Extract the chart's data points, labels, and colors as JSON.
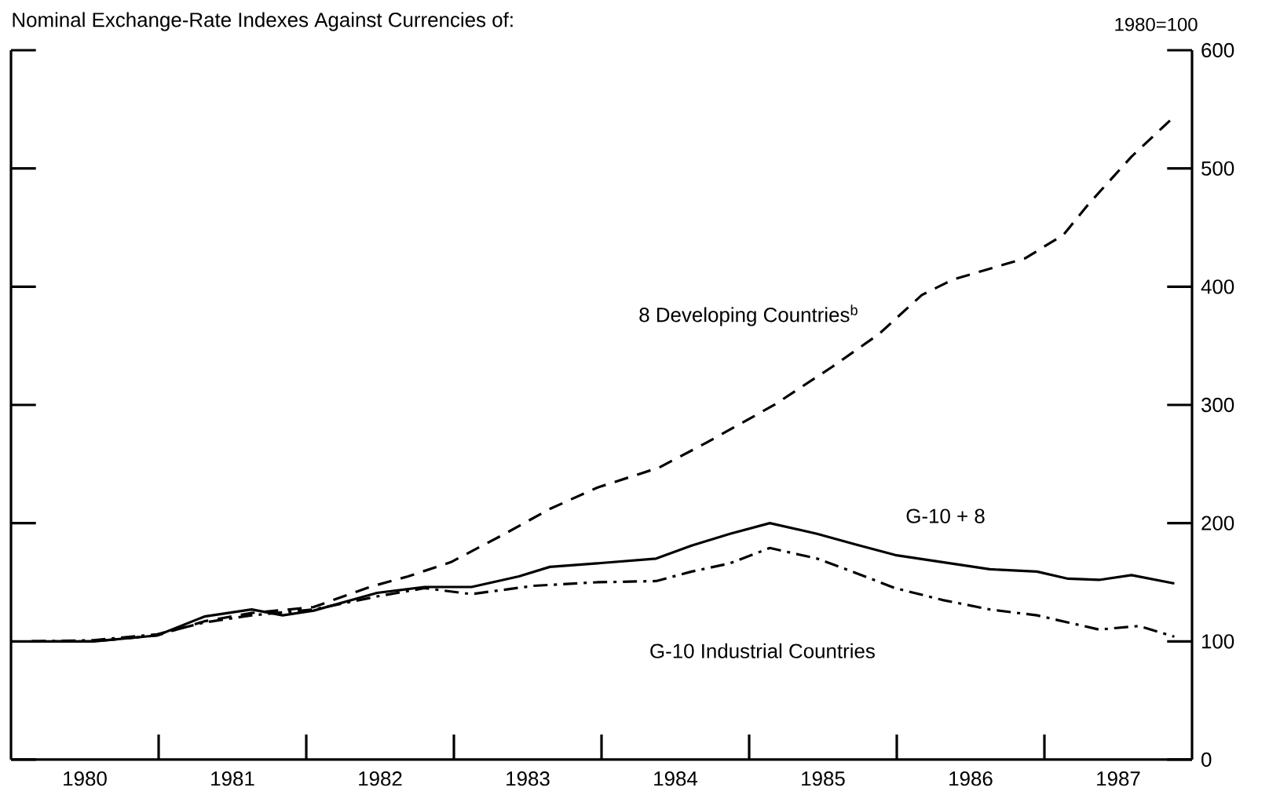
{
  "chart_data": {
    "type": "line",
    "title": "Nominal Exchange-Rate Indexes Against Currencies of:",
    "ylabel": "1980=100",
    "xlim": [
      1980,
      1988
    ],
    "ylim": [
      0,
      600
    ],
    "yticks": [
      0,
      100,
      200,
      300,
      400,
      500,
      600
    ],
    "xticks": [
      {
        "value": 1980.5,
        "label": "1980"
      },
      {
        "value": 1981,
        "label": null
      },
      {
        "value": 1981.5,
        "label": "1981"
      },
      {
        "value": 1982,
        "label": null
      },
      {
        "value": 1982.5,
        "label": "1982"
      },
      {
        "value": 1983,
        "label": null
      },
      {
        "value": 1983.5,
        "label": "1983"
      },
      {
        "value": 1984,
        "label": null
      },
      {
        "value": 1984.5,
        "label": "1984"
      },
      {
        "value": 1985,
        "label": null
      },
      {
        "value": 1985.5,
        "label": "1985"
      },
      {
        "value": 1986,
        "label": null
      },
      {
        "value": 1986.5,
        "label": "1986"
      },
      {
        "value": 1987,
        "label": null
      },
      {
        "value": 1987.5,
        "label": "1987"
      }
    ],
    "grid": false,
    "legend": false,
    "marker": "none",
    "series": [
      {
        "name": "8 Developing Countries$^{b}$",
        "color": "#000000",
        "line_style": "dashed",
        "x": [
          1980.14,
          1980.56,
          1980.99,
          1981.31,
          1981.63,
          1982.05,
          1982.43,
          1982.69,
          1982.98,
          1983.33,
          1983.65,
          1983.97,
          1984.39,
          1984.71,
          1985.17,
          1985.56,
          1985.88,
          1986.17,
          1986.38,
          1986.87,
          1987.13,
          1987.3,
          1987.59,
          1987.88
        ],
        "values": [
          100,
          100,
          105,
          117,
          124,
          129,
          146,
          155,
          167,
          190,
          212,
          230,
          247,
          268,
          300,
          332,
          360,
          393,
          406,
          424,
          444,
          470,
          510,
          544
        ]
      },
      {
        "name": "G-10 + 8",
        "color": "#000000",
        "line_style": "solid",
        "x": [
          1980.14,
          1980.56,
          1980.99,
          1981.31,
          1981.63,
          1981.84,
          1982.05,
          1982.48,
          1982.8,
          1983.12,
          1983.44,
          1983.65,
          1983.97,
          1984.37,
          1984.61,
          1984.87,
          1985.14,
          1985.46,
          1985.72,
          1985.99,
          1986.31,
          1986.63,
          1986.95,
          1987.16,
          1987.37,
          1987.59,
          1987.88
        ],
        "values": [
          100,
          100,
          105,
          121,
          127,
          122,
          126,
          141,
          146,
          146,
          155,
          163,
          166,
          170,
          181,
          191,
          200,
          191,
          182,
          173,
          167,
          161,
          159,
          153,
          152,
          156,
          149
        ]
      },
      {
        "name": "G-10 Industrial Countries",
        "color": "#000000",
        "line_style": "dashdot",
        "x": [
          1980.14,
          1980.56,
          1980.99,
          1981.31,
          1981.63,
          1982.05,
          1982.48,
          1982.8,
          1983.12,
          1983.54,
          1983.97,
          1984.37,
          1984.61,
          1984.87,
          1985.14,
          1985.46,
          1985.72,
          1985.99,
          1986.31,
          1986.63,
          1986.95,
          1987.16,
          1987.37,
          1987.64,
          1987.88
        ],
        "values": [
          100,
          101,
          106,
          116,
          122,
          127,
          138,
          145,
          140,
          147,
          150,
          151,
          159,
          166,
          179,
          170,
          158,
          145,
          135,
          127,
          122,
          116,
          110,
          113,
          104
        ]
      }
    ]
  }
}
